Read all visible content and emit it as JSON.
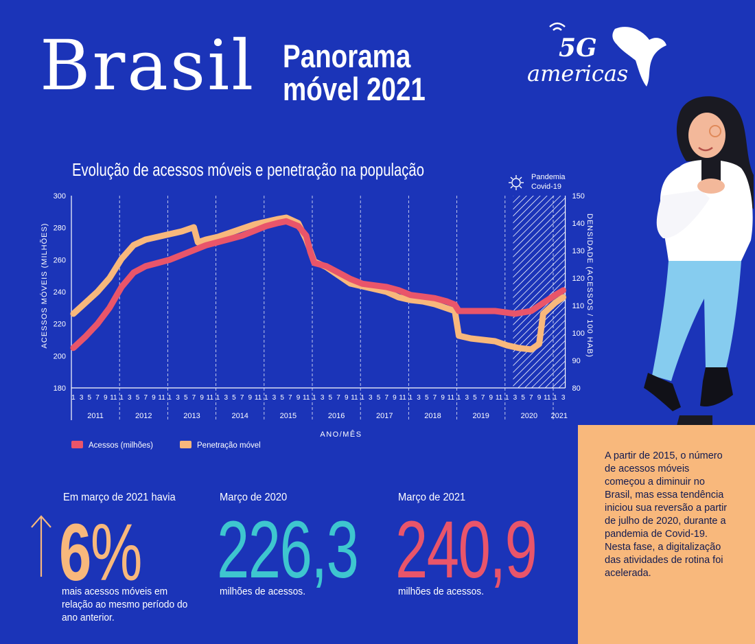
{
  "header": {
    "title_main": "Brasil",
    "title_line1": "Panorama",
    "title_line2": "móvel 2021",
    "logo_text_top": "5G",
    "logo_text_bottom": "americas"
  },
  "colors": {
    "background": "#1b34b8",
    "acessos": "#e9556a",
    "penetracao": "#f8b87c",
    "teal": "#3ec6cf",
    "side_box": "#f8b87c"
  },
  "chart_data": {
    "type": "line",
    "title": "Evolução de acessos móveis e penetração na população",
    "ylabel_left": "ACESSOS MÓVEIS (MILHÕES)",
    "ylabel_right": "DENSIDADE (ACESSOS / 100 HAB)",
    "xlabel": "ANO/MÊS",
    "ylim_left": [
      180,
      300
    ],
    "ylim_right": [
      80,
      150
    ],
    "yticks_left": [
      "180",
      "200",
      "220",
      "240",
      "260",
      "280",
      "300"
    ],
    "yticks_right": [
      "80",
      "90",
      "100",
      "110",
      "120",
      "130",
      "140",
      "150"
    ],
    "years": [
      "2011",
      "2012",
      "2013",
      "2014",
      "2015",
      "2016",
      "2017",
      "2018",
      "2019",
      "2020",
      "2021"
    ],
    "month_ticks": [
      "1",
      "3",
      "5",
      "7",
      "9",
      "11"
    ],
    "month_ticks_2021": [
      "1",
      "3"
    ],
    "annotation": {
      "line1": "Pandemia",
      "line2": "Covid-19",
      "start": "2020-03"
    },
    "grid": "vertical dashed at year boundaries",
    "legend_position": "bottom-left",
    "series": [
      {
        "name": "Acessos (milhões)",
        "axis": "left",
        "color": "#e9556a",
        "points": [
          [
            "2011-01",
            205
          ],
          [
            "2011-04",
            212
          ],
          [
            "2011-07",
            220
          ],
          [
            "2011-10",
            230
          ],
          [
            "2012-01",
            243
          ],
          [
            "2012-04",
            252
          ],
          [
            "2012-07",
            256
          ],
          [
            "2012-10",
            258
          ],
          [
            "2013-01",
            260
          ],
          [
            "2013-04",
            263
          ],
          [
            "2013-07",
            266
          ],
          [
            "2013-10",
            269
          ],
          [
            "2014-01",
            271
          ],
          [
            "2014-04",
            273
          ],
          [
            "2014-07",
            275
          ],
          [
            "2014-10",
            278
          ],
          [
            "2015-01",
            281
          ],
          [
            "2015-04",
            283
          ],
          [
            "2015-06",
            284
          ],
          [
            "2015-09",
            281
          ],
          [
            "2015-11",
            275
          ],
          [
            "2015-12",
            265
          ],
          [
            "2016-01",
            258
          ],
          [
            "2016-04",
            256
          ],
          [
            "2016-07",
            252
          ],
          [
            "2016-10",
            248
          ],
          [
            "2017-01",
            245
          ],
          [
            "2017-04",
            244
          ],
          [
            "2017-07",
            243
          ],
          [
            "2017-10",
            241
          ],
          [
            "2018-01",
            238
          ],
          [
            "2018-04",
            237
          ],
          [
            "2018-07",
            236
          ],
          [
            "2018-10",
            234
          ],
          [
            "2018-12",
            232
          ],
          [
            "2019-01",
            228
          ],
          [
            "2019-04",
            228
          ],
          [
            "2019-07",
            228
          ],
          [
            "2019-10",
            228
          ],
          [
            "2020-01",
            227
          ],
          [
            "2020-03",
            226.3
          ],
          [
            "2020-07",
            228
          ],
          [
            "2020-10",
            233
          ],
          [
            "2021-01",
            238
          ],
          [
            "2021-03",
            240.9
          ]
        ]
      },
      {
        "name": "Penetração móvel",
        "axis": "right",
        "color": "#f8b87c",
        "points": [
          [
            "2011-01",
            107
          ],
          [
            "2011-04",
            111
          ],
          [
            "2011-07",
            115
          ],
          [
            "2011-10",
            120
          ],
          [
            "2012-01",
            127
          ],
          [
            "2012-04",
            132
          ],
          [
            "2012-07",
            134
          ],
          [
            "2012-10",
            135
          ],
          [
            "2013-01",
            136
          ],
          [
            "2013-04",
            137
          ],
          [
            "2013-07",
            138.5
          ],
          [
            "2013-08",
            133
          ],
          [
            "2013-10",
            134
          ],
          [
            "2014-01",
            135
          ],
          [
            "2014-04",
            136.5
          ],
          [
            "2014-07",
            138
          ],
          [
            "2014-10",
            139.5
          ],
          [
            "2015-01",
            140.5
          ],
          [
            "2015-04",
            141.5
          ],
          [
            "2015-06",
            142
          ],
          [
            "2015-09",
            140
          ],
          [
            "2015-11",
            134
          ],
          [
            "2015-12",
            130
          ],
          [
            "2016-01",
            126
          ],
          [
            "2016-04",
            124
          ],
          [
            "2016-07",
            121
          ],
          [
            "2016-10",
            118
          ],
          [
            "2017-01",
            117
          ],
          [
            "2017-04",
            116
          ],
          [
            "2017-07",
            115
          ],
          [
            "2017-10",
            113
          ],
          [
            "2018-01",
            112
          ],
          [
            "2018-04",
            111.5
          ],
          [
            "2018-07",
            110.5
          ],
          [
            "2018-10",
            109
          ],
          [
            "2018-12",
            108
          ],
          [
            "2019-01",
            99
          ],
          [
            "2019-04",
            98
          ],
          [
            "2019-07",
            97.5
          ],
          [
            "2019-10",
            97
          ],
          [
            "2020-01",
            95.5
          ],
          [
            "2020-04",
            94.5
          ],
          [
            "2020-07",
            94
          ],
          [
            "2020-09",
            96
          ],
          [
            "2020-10",
            107
          ],
          [
            "2021-01",
            111
          ],
          [
            "2021-03",
            113
          ]
        ]
      }
    ]
  },
  "stats": [
    {
      "label": "Em março de 2021 havia",
      "value": "6%",
      "value_number": "6",
      "value_unit": "%",
      "sub": "mais acessos móveis em relação ao mesmo período do ano anterior."
    },
    {
      "label": "Março de 2020",
      "value": "226,3",
      "sub": "milhões de acessos."
    },
    {
      "label": "Março de 2021",
      "value": "240,9",
      "sub": "milhões de acessos."
    }
  ],
  "side_text": "A partir de 2015, o número de acessos móveis começou a diminuir no Brasil, mas essa tendência iniciou sua reversão a partir de julho de 2020, durante a pandemia de Covid-19. Nesta fase, a digitalização das atividades de rotina foi acelerada."
}
